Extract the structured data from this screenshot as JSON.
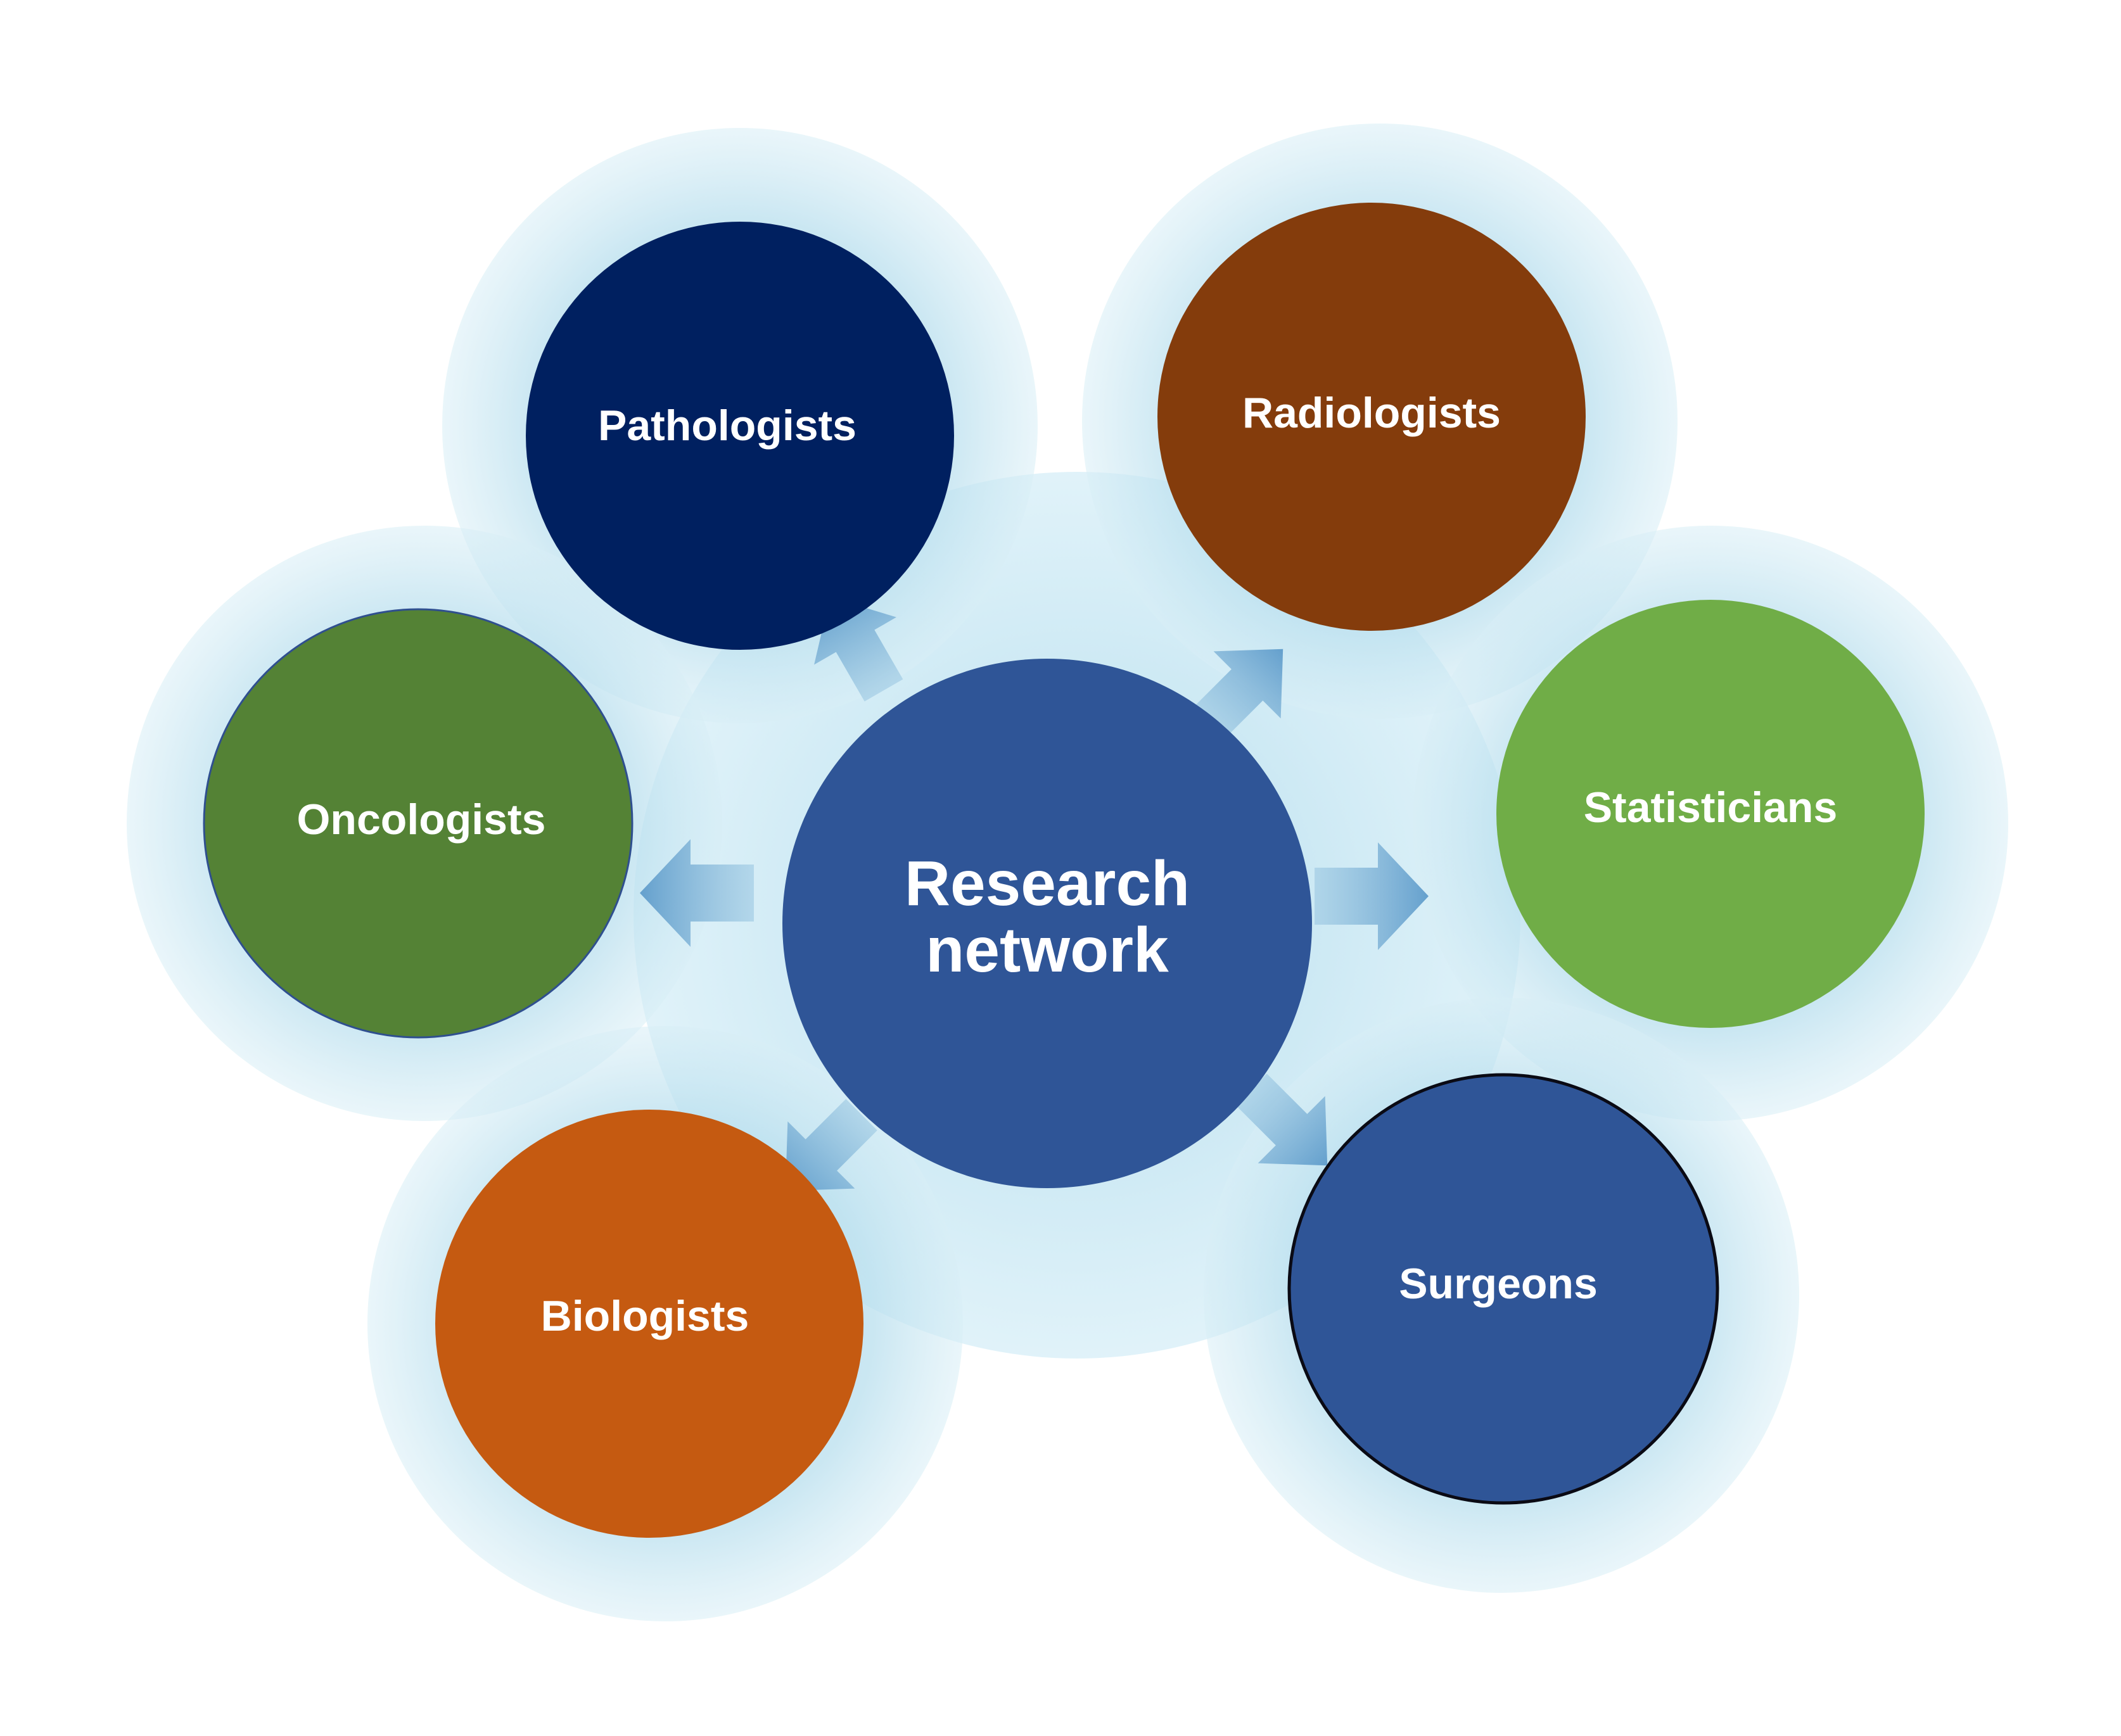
{
  "hub": {
    "line1": "Research",
    "line2": "network",
    "color": "#2F5597"
  },
  "nodes": [
    {
      "id": "pathologists",
      "label": "Pathologists",
      "color": "#002060"
    },
    {
      "id": "radiologists",
      "label": "Radiologists",
      "color": "#843C0C"
    },
    {
      "id": "oncologists",
      "label": "Oncologists",
      "color": "#548235"
    },
    {
      "id": "statisticians",
      "label": "Statisticians",
      "color": "#70AD47"
    },
    {
      "id": "biologists",
      "label": "Biologists",
      "color": "#C55A11"
    },
    {
      "id": "surgeons",
      "label": "Surgeons",
      "color": "#2F5597"
    }
  ],
  "halo_color": "#BDE1EE",
  "arrow_color": "#6FA8D0"
}
